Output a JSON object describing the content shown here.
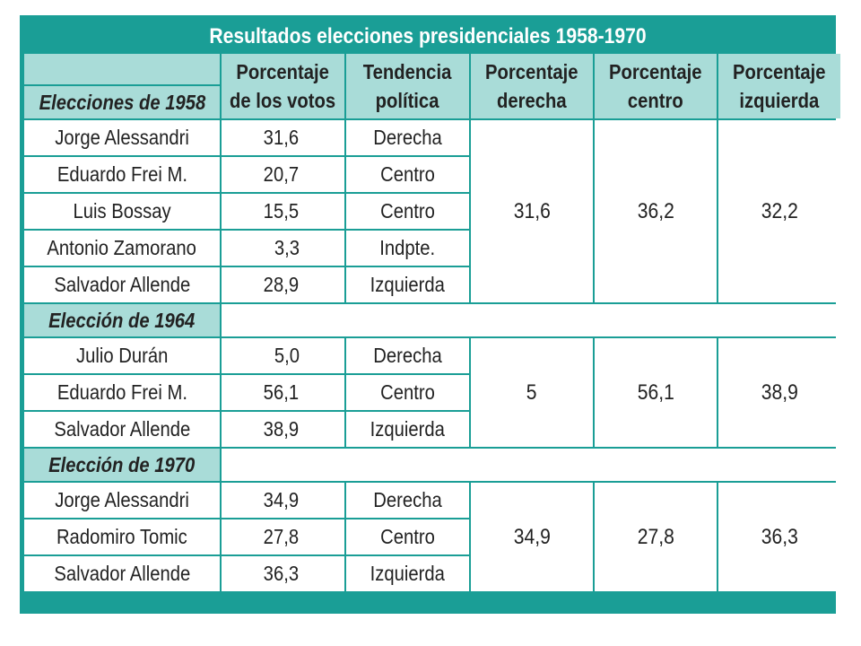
{
  "title": "Resultados elecciones presidenciales 1958-1970",
  "headers": {
    "votes_1": "Porcentaje",
    "votes_2": "de los votos",
    "trend_1": "Tendencia",
    "trend_2": "política",
    "right_1": "Porcentaje",
    "right_2": "derecha",
    "center_1": "Porcentaje",
    "center_2": "centro",
    "left_1": "Porcentaje",
    "left_2": "izquierda"
  },
  "sections": [
    {
      "label": "Elecciones de 1958",
      "rows": [
        {
          "name": "Jorge Alessandri",
          "pct": "31,6",
          "trend": "Derecha"
        },
        {
          "name": "Eduardo Frei M.",
          "pct": "20,7",
          "trend": "Centro"
        },
        {
          "name": "Luis Bossay",
          "pct": "15,5",
          "trend": "Centro"
        },
        {
          "name": "Antonio Zamorano",
          "pct": "3,3",
          "trend": "Indpte."
        },
        {
          "name": "Salvador Allende",
          "pct": "28,9",
          "trend": "Izquierda"
        }
      ],
      "right": "31,6",
      "center": "36,2",
      "left": "32,2"
    },
    {
      "label": "Elección de 1964",
      "rows": [
        {
          "name": "Julio Durán",
          "pct": "5,0",
          "trend": "Derecha"
        },
        {
          "name": "Eduardo Frei M.",
          "pct": "56,1",
          "trend": "Centro"
        },
        {
          "name": "Salvador Allende",
          "pct": "38,9",
          "trend": "Izquierda"
        }
      ],
      "right": "5",
      "center": "56,1",
      "left": "38,9"
    },
    {
      "label": "Elección de 1970",
      "rows": [
        {
          "name": "Jorge Alessandri",
          "pct": "34,9",
          "trend": "Derecha"
        },
        {
          "name": "Radomiro Tomic",
          "pct": "27,8",
          "trend": "Centro"
        },
        {
          "name": "Salvador Allende",
          "pct": "36,3",
          "trend": "Izquierda"
        }
      ],
      "right": "34,9",
      "center": "27,8",
      "left": "36,3"
    }
  ],
  "colors": {
    "frame": "#1a9e96",
    "header_fill": "#a9dcd8"
  }
}
